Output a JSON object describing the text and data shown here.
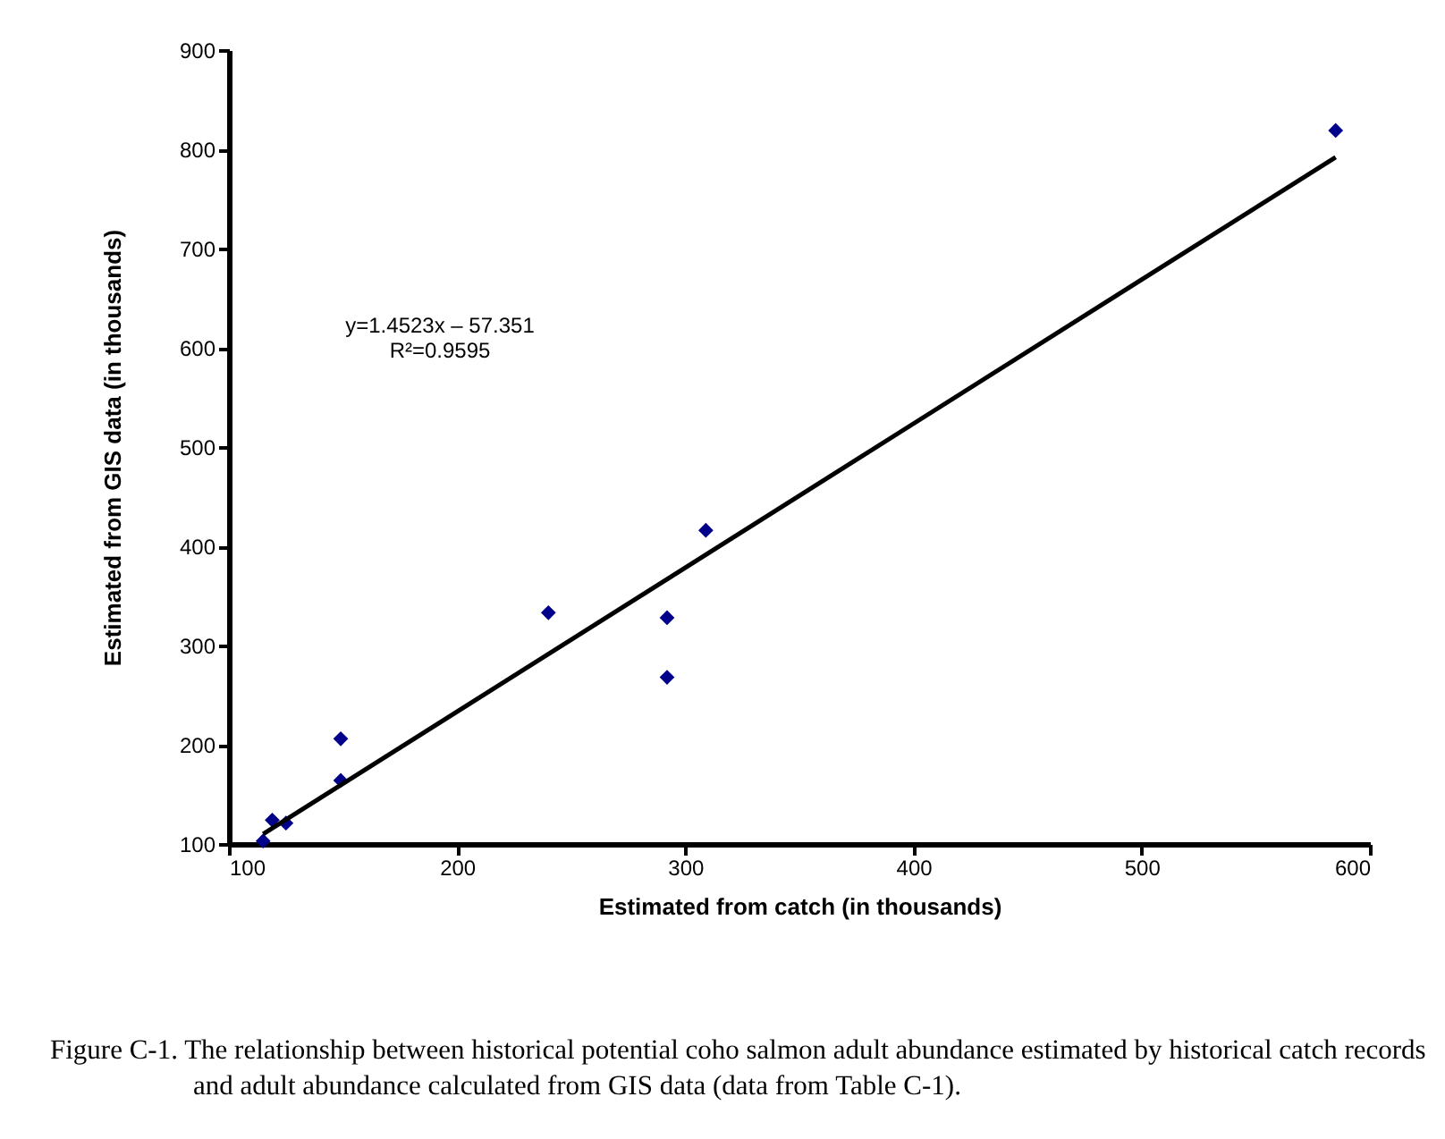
{
  "chart_data": {
    "type": "scatter",
    "xlabel": "Estimated from catch (in thousands)",
    "ylabel": "Estimated from GIS data (in thousands)",
    "x": [
      115,
      119,
      125,
      149,
      149,
      240,
      292,
      292,
      309,
      585
    ],
    "series": [
      {
        "color": "#00008b",
        "marker": "diamond",
        "values": [
          103,
          124,
          121,
          206,
          164,
          333,
          328,
          268,
          416,
          819
        ]
      },
      {
        "type": "line",
        "color": "#000000",
        "x": [
          115,
          585
        ],
        "values": [
          110,
          792
        ],
        "marker": "none"
      }
    ],
    "xlim": [
      100,
      600
    ],
    "xticks": [
      100,
      200,
      300,
      400,
      500,
      600
    ],
    "ylim": [
      100,
      900
    ],
    "yticks": [
      100,
      200,
      300,
      400,
      500,
      600,
      700,
      800,
      900
    ],
    "grid": false,
    "legend": false,
    "annotations": [
      "y=1.4523x – 57.351",
      "R²=0.9595",
      "Figure C-1.  The relationship between historical potential coho salmon adult abundance estimated by historical catch records and adult abundance calculated from GIS data (data from Table C-1)."
    ]
  }
}
